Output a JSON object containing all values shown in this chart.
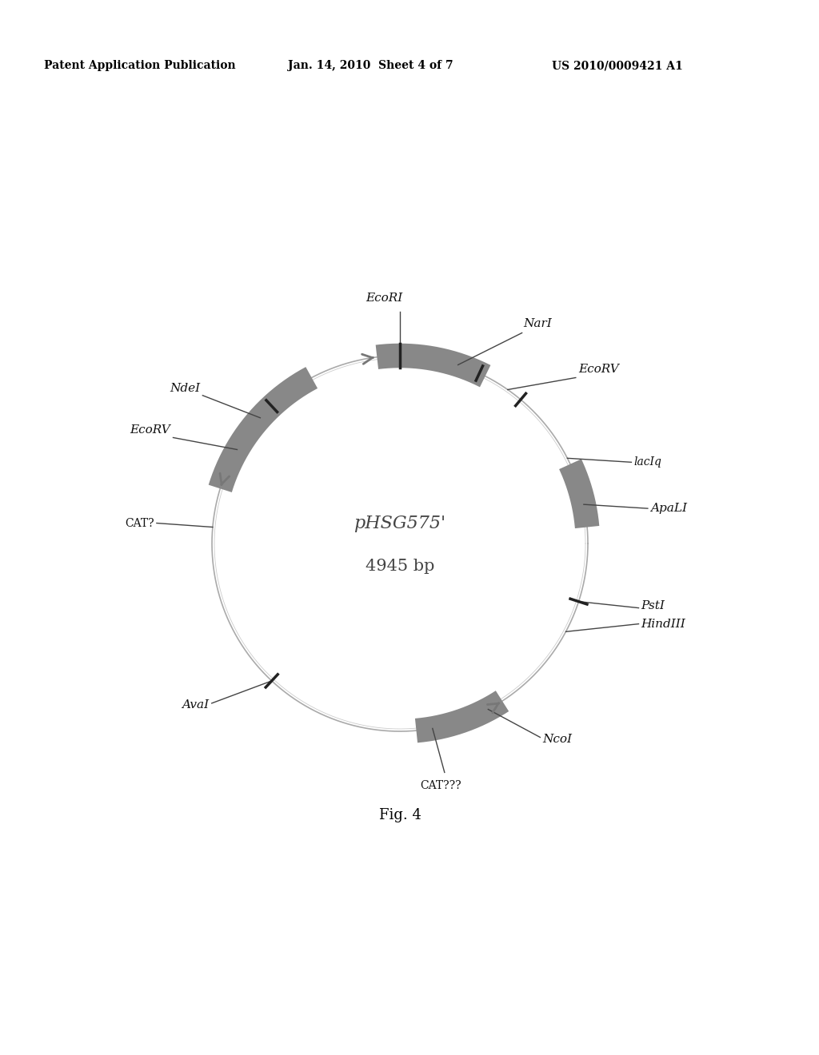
{
  "title": "pHSG575'",
  "subtitle": "4945 bp",
  "header_left": "Patent Application Publication",
  "header_center": "Jan. 14, 2010  Sheet 4 of 7",
  "header_right": "US 2010/0009421 A1",
  "fig_label": "Fig. 4",
  "background_color": "#ffffff"
}
